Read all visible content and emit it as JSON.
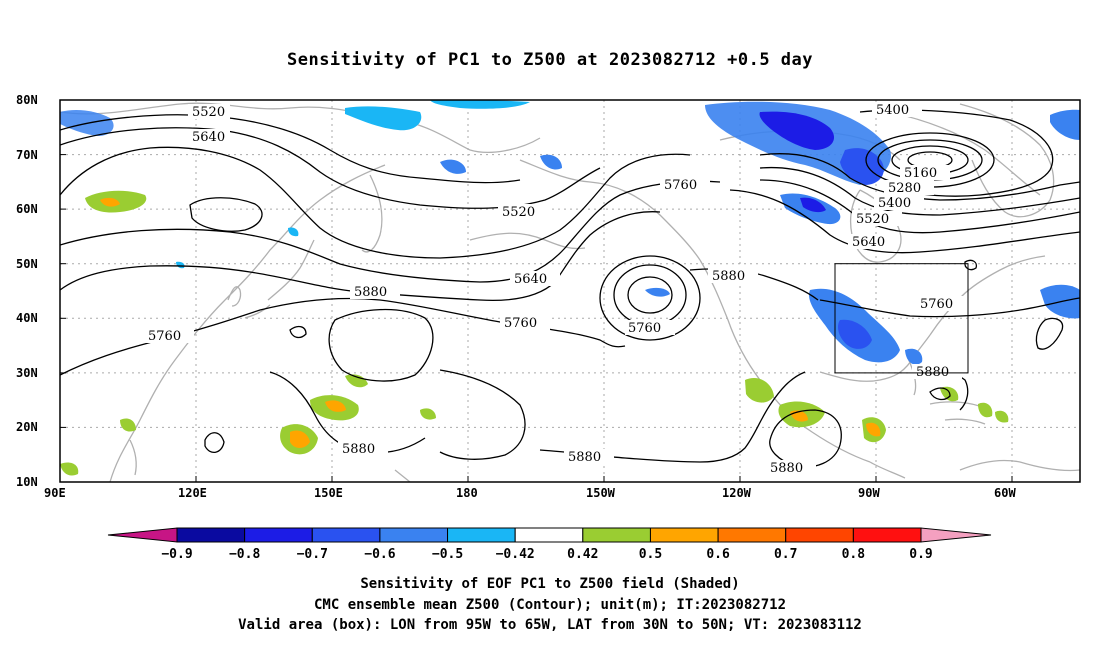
{
  "title": "Sensitivity of PC1 to Z500 at 2023082712 +0.5 day",
  "lat_ticks": [
    "80N",
    "70N",
    "60N",
    "50N",
    "40N",
    "30N",
    "20N",
    "10N"
  ],
  "lon_ticks": [
    "90E",
    "120E",
    "150E",
    "180",
    "150W",
    "120W",
    "90W",
    "60W"
  ],
  "contour_labels": {
    "5520a": "5520",
    "5640a": "5640",
    "5520b": "5520",
    "5760a": "5760",
    "5640b": "5640",
    "5760b": "5760",
    "5760c": "5760",
    "5880a": "5880",
    "5760d": "5760",
    "5400a": "5400",
    "5160": "5160",
    "5280": "5280",
    "5400b": "5400",
    "5520c": "5520",
    "5640c": "5640",
    "5880b": "5880",
    "5760e": "5760",
    "5880c": "5880",
    "5880d": "5880",
    "5880e": "5880",
    "5880f": "5880"
  },
  "colorbar": {
    "labels": [
      "−0.9",
      "−0.8",
      "−0.7",
      "−0.6",
      "−0.5",
      "−0.42",
      "0.42",
      "0.5",
      "0.6",
      "0.7",
      "0.8",
      "0.9"
    ],
    "colors": {
      "low_triangle": "#c71585",
      "b1": "#0a0aa0",
      "b2": "#1c1ce6",
      "b3": "#2a52f0",
      "b4": "#3a82f0",
      "b5": "#1ab6f5",
      "neutral": "#ffffff",
      "p1": "#9acd32",
      "p2": "#ffa500",
      "p3": "#ff7800",
      "p4": "#ff4500",
      "p5": "#ff1010",
      "high_triangle": "#f4a0c0"
    }
  },
  "caption": {
    "line1": "Sensitivity of EOF PC1 to Z500 field (Shaded)",
    "line2": "CMC ensemble mean Z500 (Contour); unit(m); IT:2023082712",
    "line3": "Valid area (box): LON from 95W to 65W, LAT from 30N to 50N; VT: 2023083112"
  }
}
